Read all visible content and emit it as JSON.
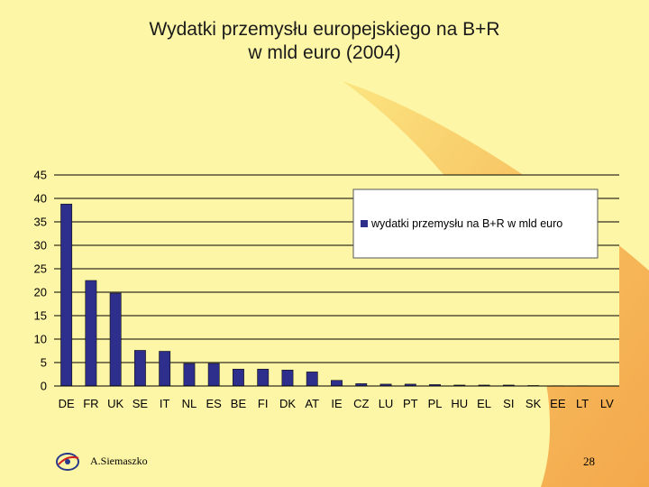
{
  "slide": {
    "title_line1": "Wydatki przemysłu europejskiego na B+R",
    "title_line2": "w mld euro (2004)",
    "author": "A.Siemaszko",
    "page_number": "28"
  },
  "colors": {
    "background": "#fdf6a6",
    "bar": "#2e2e8c",
    "swoosh": "#f3a94a",
    "plot_area": "#fdf6a6"
  },
  "chart_data": {
    "type": "bar",
    "categories": [
      "DE",
      "FR",
      "UK",
      "SE",
      "IT",
      "NL",
      "ES",
      "BE",
      "FI",
      "DK",
      "AT",
      "IE",
      "CZ",
      "LU",
      "PT",
      "PL",
      "HU",
      "EL",
      "SI",
      "SK",
      "EE",
      "LT",
      "LV"
    ],
    "series": [
      {
        "name": "wydatki przemysłu na B+R w mld euro",
        "values": [
          38.8,
          22.5,
          19.8,
          7.6,
          7.4,
          4.8,
          4.8,
          3.6,
          3.6,
          3.4,
          3.0,
          1.2,
          0.5,
          0.4,
          0.4,
          0.3,
          0.2,
          0.2,
          0.2,
          0.1,
          0.05,
          0.05,
          0.02
        ]
      }
    ],
    "yticks": [
      "0",
      "5",
      "10",
      "15",
      "20",
      "25",
      "30",
      "35",
      "40",
      "45"
    ],
    "ylim": [
      0,
      45
    ],
    "grid": true,
    "legend_position": "top-right",
    "title": "",
    "xlabel": "",
    "ylabel": ""
  }
}
